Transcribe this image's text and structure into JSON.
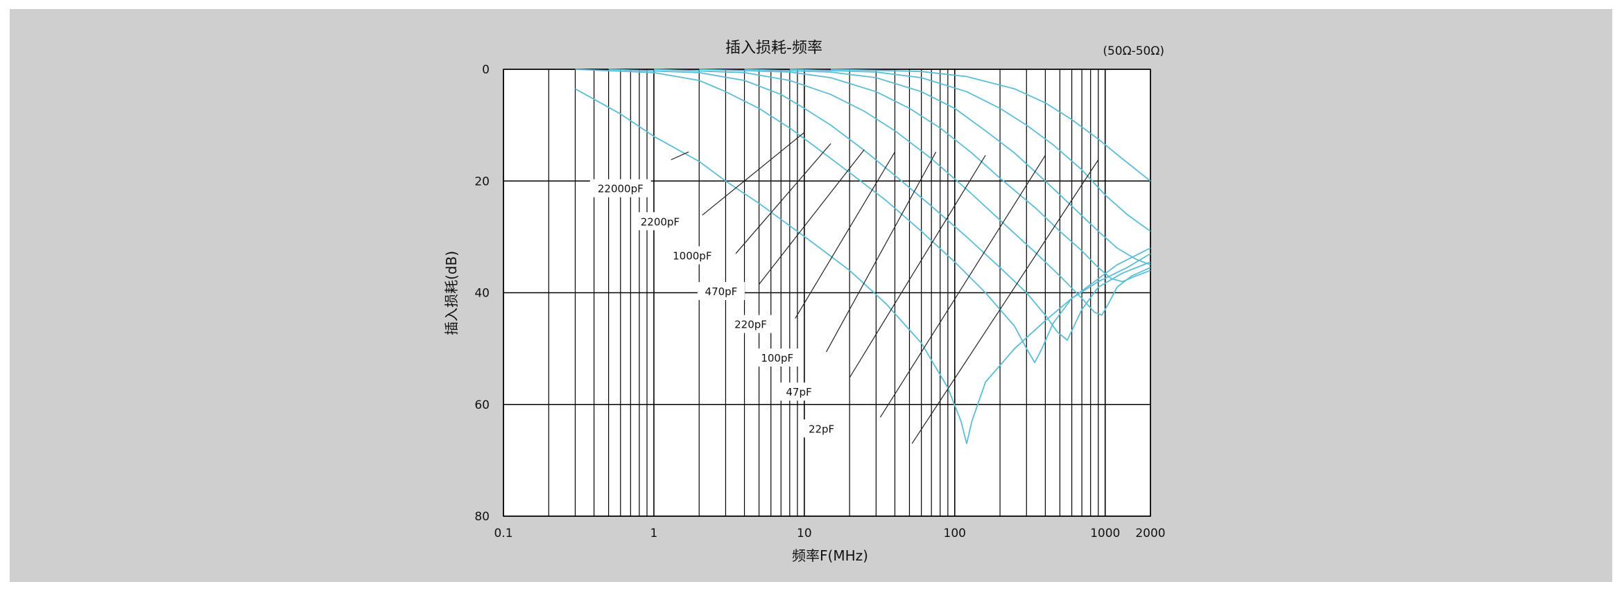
{
  "chart_data": {
    "type": "line",
    "title": "插入损耗-频率",
    "subtitle": "(50Ω-50Ω)",
    "xlabel": "频率F(MHz)",
    "ylabel": "插入损耗(dB)",
    "x_scale": "log",
    "xlim": [
      0.1,
      2000
    ],
    "ylim": [
      0,
      80
    ],
    "y_inverted": true,
    "x_tick_labels": [
      "0.1",
      "1",
      "10",
      "100",
      "1000",
      "2000"
    ],
    "x_tick_values": [
      0.1,
      1,
      10,
      100,
      1000,
      2000
    ],
    "y_tick_labels": [
      "0",
      "20",
      "40",
      "60",
      "80"
    ],
    "y_tick_values": [
      0,
      20,
      40,
      60,
      80
    ],
    "grid": true,
    "curve_color": "#5bbdd6",
    "series": [
      {
        "name": "22000pF",
        "x": [
          0.3,
          0.6,
          1,
          2,
          3,
          5,
          8,
          12,
          20,
          35,
          60,
          90,
          110,
          120,
          130,
          160,
          250,
          400,
          600,
          900,
          1200,
          2000
        ],
        "y": [
          3.5,
          8,
          12,
          16.5,
          20,
          24,
          28,
          31.5,
          36,
          42,
          49,
          57,
          63,
          67,
          63,
          56,
          50,
          45,
          41,
          37.5,
          35,
          32
        ]
      },
      {
        "name": "2200pF",
        "x": [
          0.3,
          1,
          2,
          3,
          5,
          8,
          12,
          20,
          35,
          60,
          100,
          160,
          250,
          300,
          340,
          380,
          450,
          600,
          900,
          1400,
          2000
        ],
        "y": [
          0,
          0.6,
          2,
          4,
          7,
          10.5,
          14,
          18.5,
          23.5,
          29,
          34.5,
          40,
          46,
          50,
          52.5,
          50,
          45.5,
          41,
          38,
          35.5,
          33
        ]
      },
      {
        "name": "1000pF",
        "x": [
          0.5,
          2,
          4,
          7,
          10,
          15,
          25,
          40,
          70,
          120,
          200,
          300,
          400,
          480,
          560,
          620,
          700,
          900,
          1300,
          2000
        ],
        "y": [
          0,
          0.6,
          2,
          4.5,
          7,
          10,
          14.5,
          19,
          24.5,
          30,
          35.5,
          40,
          44,
          47,
          48.5,
          46,
          43,
          39,
          36.5,
          34.5
        ]
      },
      {
        "name": "470pF",
        "x": [
          1,
          4,
          8,
          15,
          25,
          40,
          70,
          120,
          200,
          350,
          500,
          700,
          850,
          950,
          1050,
          1200,
          1500,
          2000
        ],
        "y": [
          0,
          0.6,
          2,
          4.5,
          7.5,
          11,
          16,
          21.5,
          27,
          33,
          37,
          41,
          43.5,
          44,
          42,
          39,
          37,
          35.5
        ]
      },
      {
        "name": "220pF",
        "x": [
          2,
          8,
          15,
          30,
          50,
          80,
          130,
          200,
          350,
          500,
          700,
          900,
          1100,
          1300,
          1600,
          2000
        ],
        "y": [
          0,
          0.5,
          1.5,
          4,
          7,
          10.5,
          15,
          19.5,
          25,
          29,
          32.5,
          35.5,
          37.5,
          38,
          37,
          36
        ]
      },
      {
        "name": "100pF",
        "x": [
          4,
          15,
          30,
          60,
          100,
          160,
          250,
          400,
          600,
          900,
          1200,
          1600,
          2000
        ],
        "y": [
          0,
          0.5,
          1.5,
          4,
          7,
          11,
          15,
          20,
          24.5,
          29,
          32,
          34,
          35
        ]
      },
      {
        "name": "47pF",
        "x": [
          8,
          30,
          60,
          120,
          200,
          300,
          450,
          700,
          1000,
          1400,
          2000
        ],
        "y": [
          0,
          0.5,
          1.5,
          4,
          7,
          10,
          13.5,
          18,
          22.5,
          26,
          29
        ]
      },
      {
        "name": "22pF",
        "x": [
          15,
          60,
          120,
          250,
          400,
          600,
          900,
          1300,
          1700,
          2000
        ],
        "y": [
          0,
          0.4,
          1.3,
          3.5,
          6,
          9,
          12.5,
          16,
          18.5,
          20
        ]
      }
    ],
    "series_labels": [
      "22000pF",
      "2200pF",
      "1000pF",
      "470pF",
      "220pF",
      "100pF",
      "47pF",
      "22pF"
    ]
  }
}
